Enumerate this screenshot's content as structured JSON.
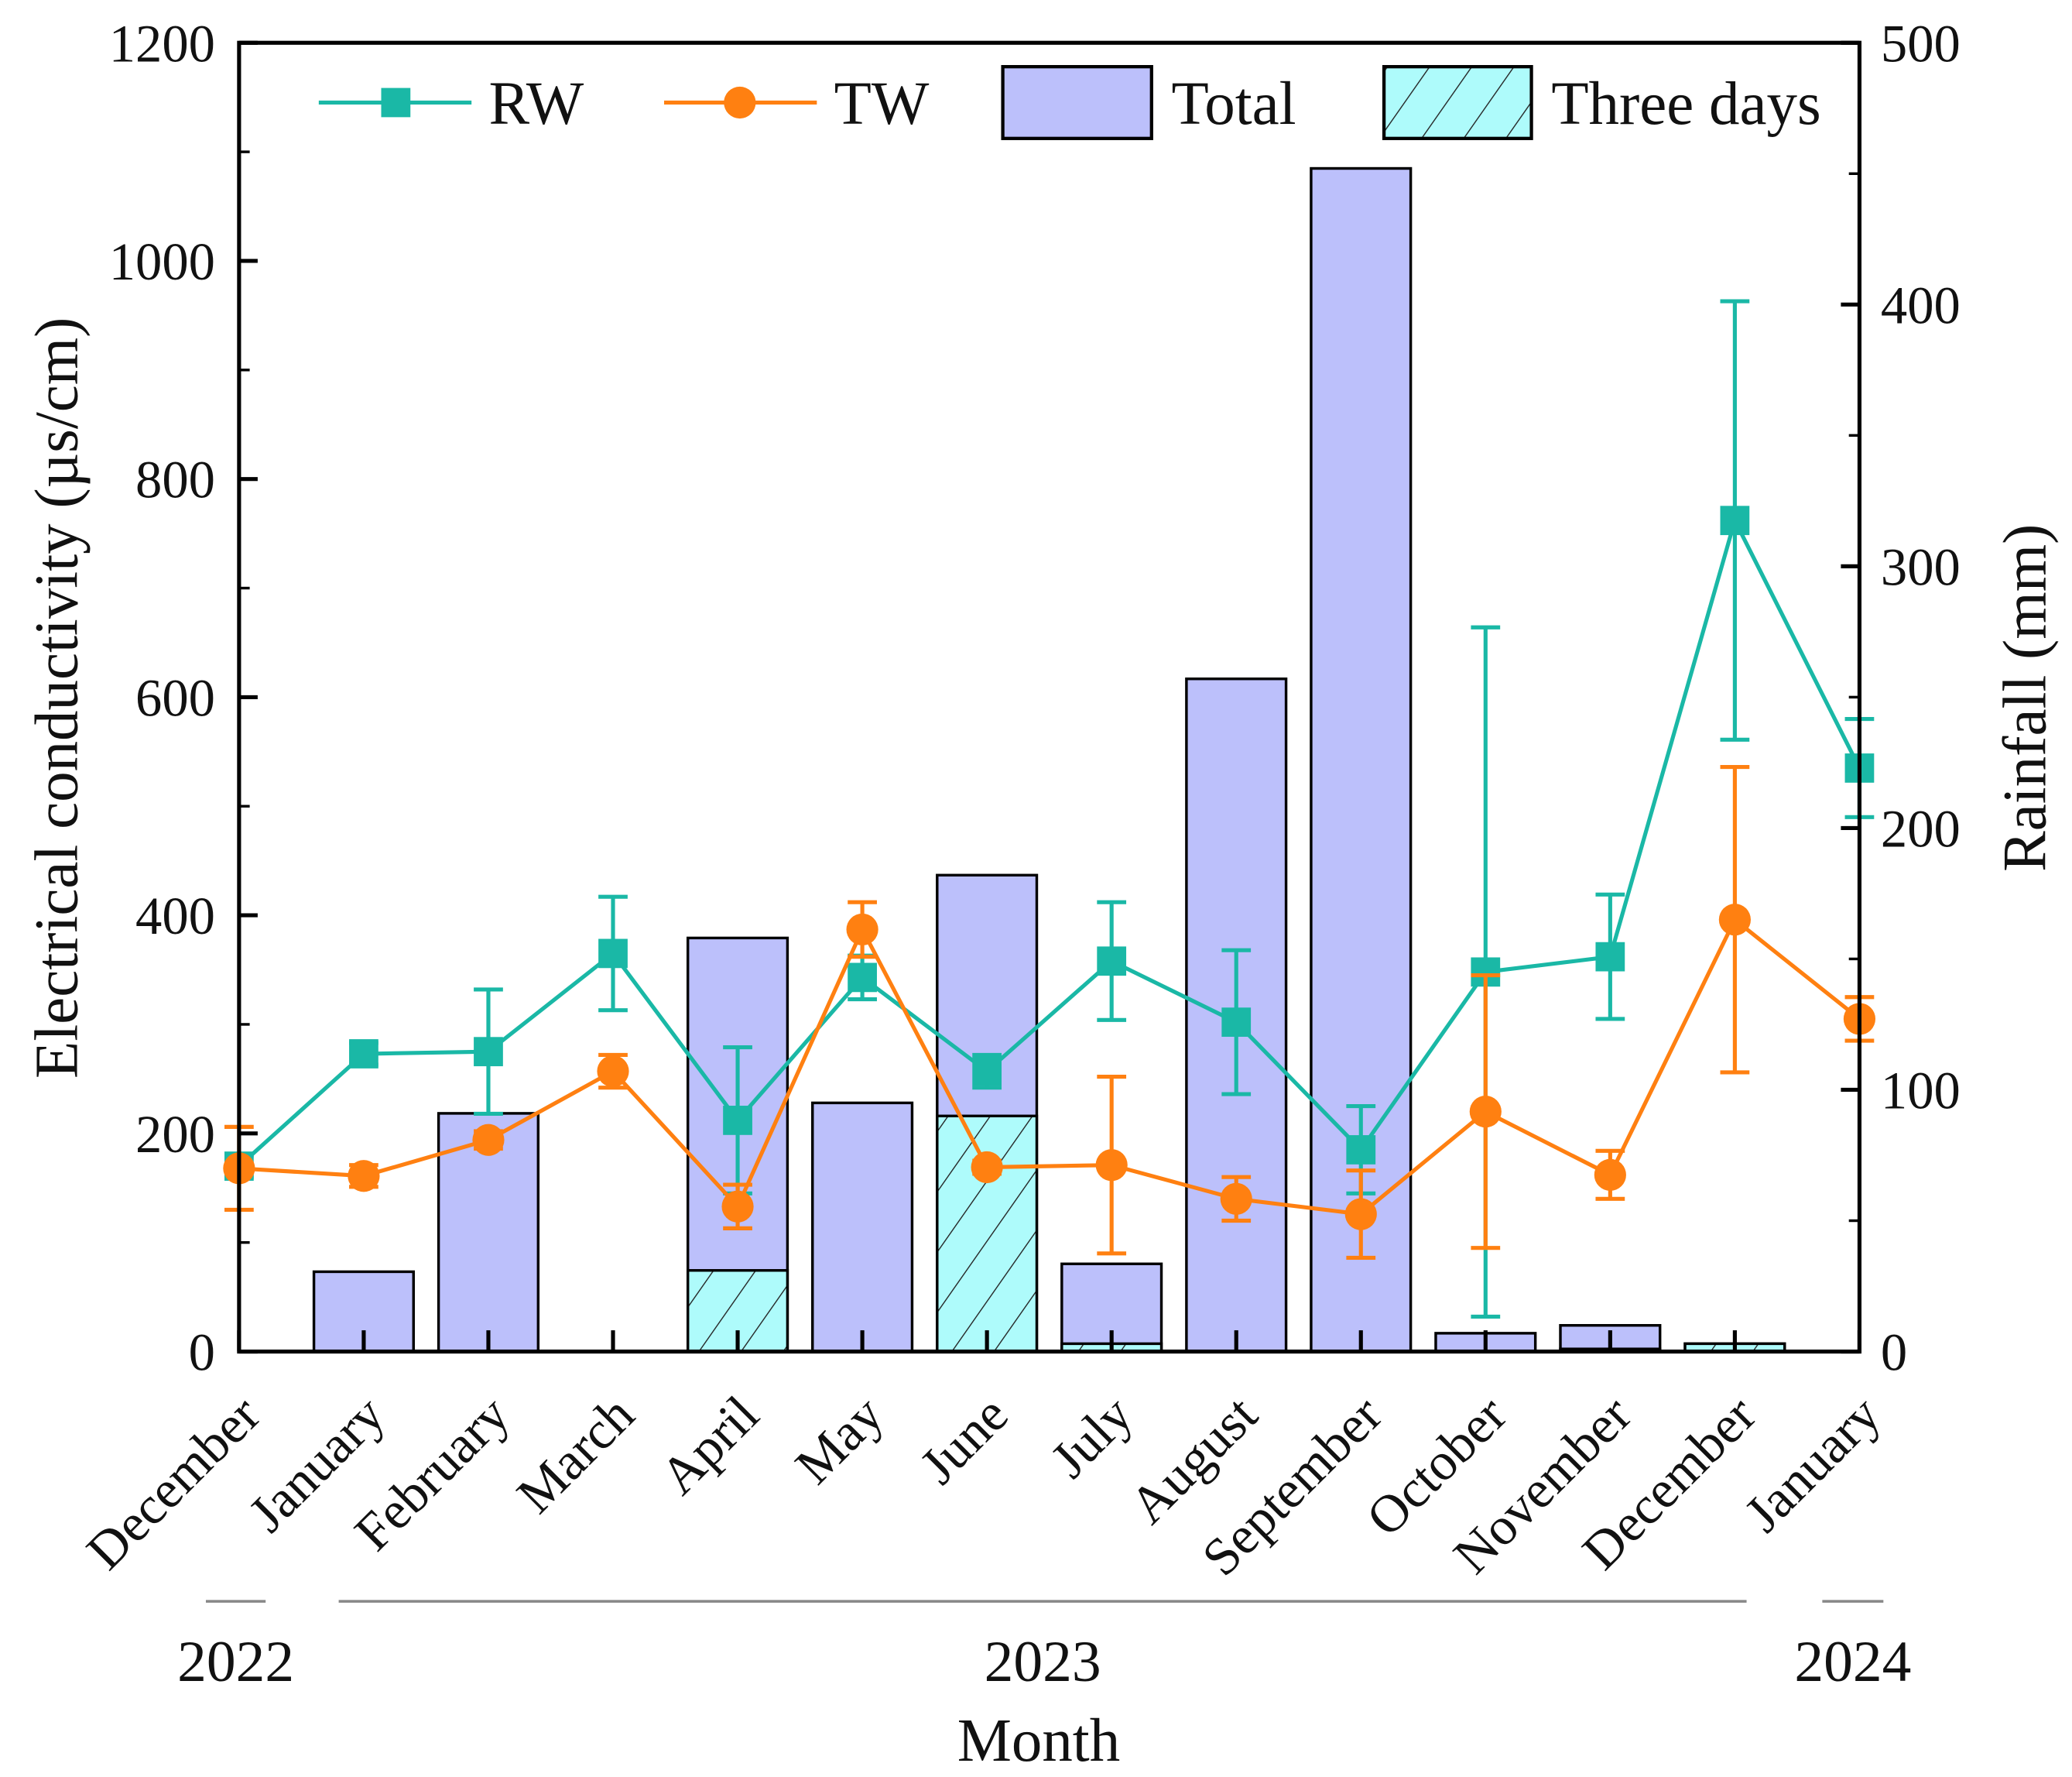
{
  "chart_data": {
    "type": "bar+line",
    "xlabel": "Month",
    "ylabel_left": "Electrical conductivity (µs/cm)",
    "ylabel_right": "Rainfall (mm)",
    "ylim_left": [
      0,
      1200
    ],
    "ylim_right": [
      0,
      500
    ],
    "yticks_left": [
      "0",
      "200",
      "400",
      "600",
      "800",
      "1000",
      "1200"
    ],
    "yticks_right": [
      "0",
      "100",
      "200",
      "300",
      "400",
      "500"
    ],
    "categories": [
      "December",
      "January",
      "February",
      "March",
      "April",
      "May",
      "June",
      "July",
      "August",
      "September",
      "October",
      "November",
      "December",
      "January"
    ],
    "years": [
      {
        "label": "2022",
        "from": 0,
        "to": 0
      },
      {
        "label": "2023",
        "from": 1,
        "to": 12
      },
      {
        "label": "2024",
        "from": 13,
        "to": 13
      }
    ],
    "legend": {
      "placement": "top",
      "entries": [
        "RW",
        "TW",
        "Total",
        "Three days"
      ]
    },
    "series": [
      {
        "name": "RW",
        "type": "line",
        "axis": "left",
        "color": "#1ab8a6",
        "values": [
          170,
          273,
          275,
          365,
          212,
          343,
          257,
          358,
          302,
          185,
          348,
          362,
          762,
          535
        ],
        "errors": [
          10,
          10,
          57,
          52,
          67,
          20,
          15,
          54,
          66,
          40,
          316,
          57,
          201,
          45
        ]
      },
      {
        "name": "TW",
        "type": "line",
        "axis": "left",
        "color": "#ff8011",
        "values": [
          168,
          161,
          194,
          257,
          133,
          387,
          169,
          171,
          140,
          126,
          220,
          162,
          396,
          305
        ],
        "errors": [
          38,
          10,
          8,
          15,
          20,
          25,
          6,
          81,
          20,
          40,
          125,
          22,
          140,
          20
        ]
      },
      {
        "name": "Total",
        "type": "bar",
        "axis": "right",
        "color": "#bcc0fb",
        "values": [
          0,
          30.5,
          91,
          0,
          158,
          95,
          182,
          33.5,
          257,
          452,
          7,
          10,
          3,
          0
        ]
      },
      {
        "name": "Three days",
        "type": "bar",
        "axis": "right",
        "color": "#aefbfb",
        "values": [
          0,
          0,
          0,
          0,
          31,
          0,
          90,
          3,
          0,
          0,
          0,
          1,
          3,
          0
        ]
      }
    ]
  }
}
